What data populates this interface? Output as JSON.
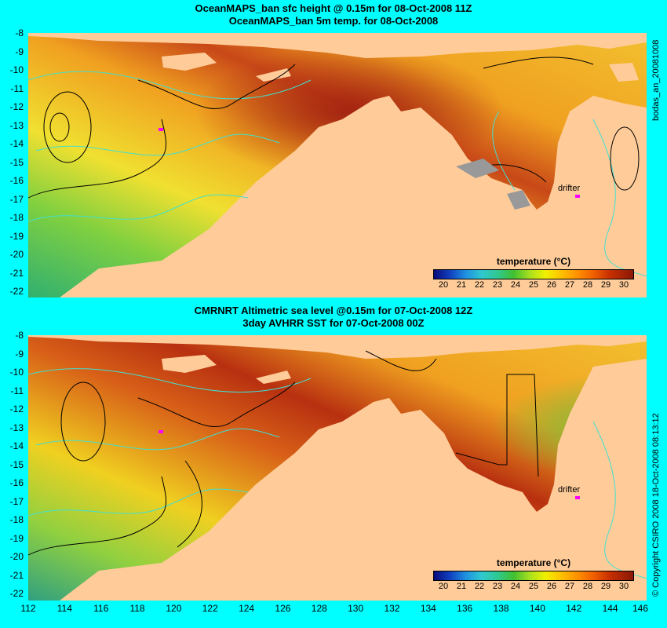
{
  "top_panel": {
    "title_line1": "OceanMAPS_ban sfc height @ 0.15m for 08-Oct-2008 11Z",
    "title_line2": "OceanMAPS_ban 5m temp. for 08-Oct-2008",
    "side_label": "bodas_an_20081008",
    "legend_title": "temperature (°C)",
    "legend_ticks": [
      "20",
      "21",
      "22",
      "23",
      "24",
      "25",
      "26",
      "27",
      "28",
      "29",
      "30"
    ],
    "drifter_label": "drifter"
  },
  "bottom_panel": {
    "title_line1": "CMRNRT Altimetric sea level  @0.15m  for 07-Oct-2008 12Z",
    "title_line2": "3day AVHRR SST for 07-Oct-2008 00Z",
    "side_label": "© Copyright CSIRO 2008    18-Oct-2008 08:13:12",
    "legend_title": "temperature (°C)",
    "legend_ticks": [
      "20",
      "21",
      "22",
      "23",
      "24",
      "25",
      "26",
      "27",
      "28",
      "29",
      "30"
    ],
    "drifter_label": "drifter"
  },
  "y_axis_labels": [
    "-8",
    "-9",
    "-10",
    "-11",
    "-12",
    "-13",
    "-14",
    "-15",
    "-16",
    "-17",
    "-18",
    "-19",
    "-20",
    "-21",
    "-22"
  ],
  "x_axis_labels": [
    "112",
    "114",
    "116",
    "118",
    "120",
    "122",
    "124",
    "126",
    "128",
    "130",
    "132",
    "134",
    "136",
    "138",
    "140",
    "142",
    "144",
    "146"
  ],
  "colors": {
    "background": "#00ffff",
    "land": "#ffcc99",
    "contour": "#000000",
    "coastline_detail": "#40e0d0",
    "drifter": "#ff00ff"
  },
  "icons": {
    "drifter_marker": "magenta-arrow-icon"
  }
}
